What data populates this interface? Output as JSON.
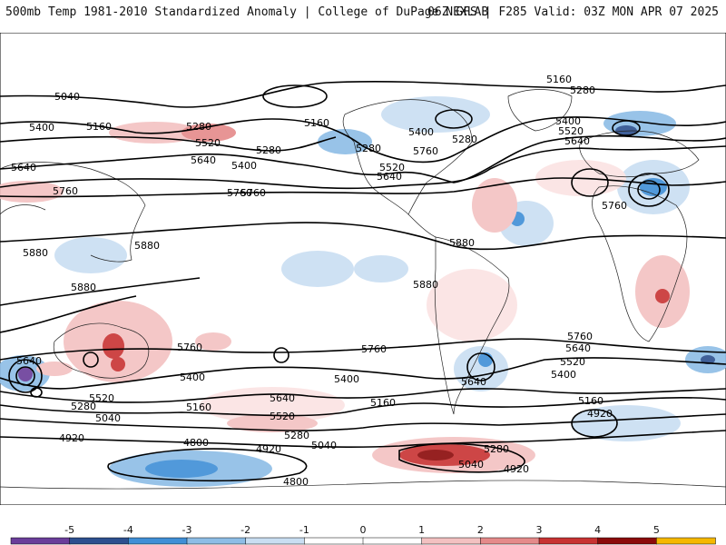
{
  "header": {
    "left_title": "500mb Temp 1981-2010 Standardized Anomaly | College of DuPage NEXLAB",
    "right_title": "06Z GFS | F285 Valid: 03Z MON APR 07 2025"
  },
  "contour_labels": [
    "5040",
    "5160",
    "5280",
    "5400",
    "5520",
    "5640",
    "5760",
    "5880",
    "4920",
    "4800"
  ],
  "labels": {
    "l1": "5040",
    "l2": "5160",
    "l3": "5280",
    "l4": "5160",
    "l5": "5280",
    "l6": "5400",
    "l7": "5520",
    "l8": "5400",
    "l9": "5640",
    "l10": "5640",
    "l11": "5760",
    "l12": "5760",
    "l13": "5880",
    "l14": "5880",
    "l15": "5880",
    "l16": "5280",
    "l17": "5400",
    "l18": "5520",
    "l19": "5640",
    "l20": "5760",
    "l21": "5280",
    "l22": "5160",
    "l23": "5280",
    "l24": "5400",
    "l25": "5520",
    "l26": "5640",
    "l27": "5760",
    "l28": "5880",
    "l29": "5880",
    "l30": "5640",
    "l31": "5520",
    "l32": "5280",
    "l33": "5040",
    "l34": "4920",
    "l35": "5760",
    "l36": "5400",
    "l37": "5160",
    "l38": "5640",
    "l39": "5520",
    "l40": "5280",
    "l41": "5040",
    "l42": "4920",
    "l43": "4800",
    "l44": "4800",
    "l45": "5760",
    "l46": "5400",
    "l47": "5160",
    "l48": "5640",
    "l49": "5280",
    "l50": "5040",
    "l51": "4920",
    "l52": "5760",
    "l53": "5640",
    "l54": "5520",
    "l55": "5400",
    "l56": "5160",
    "l57": "4920",
    "l58": "5760"
  },
  "colorbar": {
    "ticks": [
      "-5",
      "-4",
      "-3",
      "-2",
      "-1",
      "0",
      "1",
      "2",
      "3",
      "4",
      "5"
    ],
    "colors": [
      "#6a3d9a",
      "#2c4f8f",
      "#3f8fd6",
      "#8dbde6",
      "#c9def2",
      "#ffffff",
      "#ffffff",
      "#f3c1c1",
      "#e58a8a",
      "#c83232",
      "#8b0a0a",
      "#f5b800"
    ]
  }
}
